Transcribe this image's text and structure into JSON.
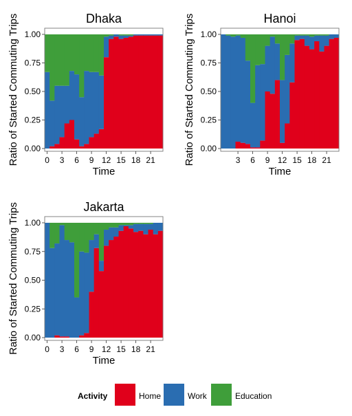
{
  "chart_data": [
    {
      "type": "bar",
      "stacked": true,
      "title": "Dhaka",
      "xlabel": "Time",
      "ylabel": "Ratio of Started Commuting Trips",
      "x": [
        0,
        1,
        2,
        3,
        4,
        5,
        6,
        7,
        8,
        9,
        10,
        11,
        12,
        13,
        14,
        15,
        16,
        17,
        18,
        19,
        20,
        21,
        22,
        23
      ],
      "xticks": [
        "0",
        "3",
        "6",
        "9",
        "12",
        "15",
        "18",
        "21"
      ],
      "yticks": [
        "0.00",
        "0.25",
        "0.50",
        "0.75",
        "1.00"
      ],
      "ylim": [
        0,
        1
      ],
      "series": [
        {
          "name": "Home",
          "values": [
            0.0,
            0.02,
            0.04,
            0.1,
            0.22,
            0.25,
            0.08,
            0.02,
            0.04,
            0.1,
            0.13,
            0.17,
            0.8,
            0.96,
            0.98,
            0.96,
            0.97,
            0.98,
            0.99,
            0.99,
            0.99,
            0.99,
            0.99,
            0.99
          ]
        },
        {
          "name": "Work",
          "values": [
            0.67,
            0.4,
            0.51,
            0.45,
            0.33,
            0.43,
            0.57,
            0.43,
            0.64,
            0.57,
            0.54,
            0.47,
            0.18,
            0.03,
            0.02,
            0.03,
            0.02,
            0.01,
            0.01,
            0.01,
            0.01,
            0.01,
            0.01,
            0.01
          ]
        },
        {
          "name": "Education",
          "values": [
            0.33,
            0.58,
            0.45,
            0.45,
            0.45,
            0.32,
            0.35,
            0.55,
            0.32,
            0.33,
            0.33,
            0.36,
            0.02,
            0.01,
            0.0,
            0.01,
            0.01,
            0.01,
            0.0,
            0.0,
            0.0,
            0.0,
            0.0,
            0.0
          ]
        }
      ]
    },
    {
      "type": "bar",
      "stacked": true,
      "title": "Hanoi",
      "xlabel": "Time",
      "ylabel": "Ratio of Started Commuting Trips",
      "x": [
        0,
        1,
        2,
        3,
        4,
        5,
        6,
        7,
        8,
        9,
        10,
        11,
        12,
        13,
        14,
        15,
        16,
        17,
        18,
        19,
        20,
        21,
        22,
        23
      ],
      "xticks": [
        "3",
        "6",
        "9",
        "12",
        "15",
        "18",
        "21"
      ],
      "yticks": [
        "0.00",
        "0.25",
        "0.50",
        "0.75",
        "1.00"
      ],
      "ylim": [
        0,
        1
      ],
      "series": [
        {
          "name": "Home",
          "values": [
            0.0,
            0.0,
            0.0,
            0.06,
            0.05,
            0.04,
            0.01,
            0.01,
            0.07,
            0.5,
            0.48,
            0.6,
            0.05,
            0.22,
            0.58,
            0.95,
            0.96,
            0.9,
            0.87,
            0.94,
            0.85,
            0.9,
            0.96,
            0.97
          ]
        },
        {
          "name": "Work",
          "values": [
            1.0,
            0.99,
            0.98,
            0.93,
            0.92,
            0.73,
            0.39,
            0.72,
            0.67,
            0.4,
            0.5,
            0.32,
            0.55,
            0.6,
            0.34,
            0.04,
            0.03,
            0.09,
            0.11,
            0.05,
            0.14,
            0.09,
            0.04,
            0.03
          ]
        },
        {
          "name": "Education",
          "values": [
            0.0,
            0.01,
            0.02,
            0.01,
            0.03,
            0.23,
            0.6,
            0.27,
            0.26,
            0.1,
            0.02,
            0.08,
            0.4,
            0.18,
            0.08,
            0.01,
            0.01,
            0.01,
            0.02,
            0.01,
            0.01,
            0.01,
            0.0,
            0.0
          ]
        }
      ]
    },
    {
      "type": "bar",
      "stacked": true,
      "title": "Jakarta",
      "xlabel": "Time",
      "ylabel": "Ratio of Started Commuting Trips",
      "x": [
        0,
        1,
        2,
        3,
        4,
        5,
        6,
        7,
        8,
        9,
        10,
        11,
        12,
        13,
        14,
        15,
        16,
        17,
        18,
        19,
        20,
        21,
        22,
        23
      ],
      "xticks": [
        "0",
        "3",
        "6",
        "9",
        "12",
        "15",
        "18",
        "21"
      ],
      "yticks": [
        "0.00",
        "0.25",
        "0.50",
        "0.75",
        "1.00"
      ],
      "ylim": [
        0,
        1
      ],
      "series": [
        {
          "name": "Home",
          "values": [
            0.0,
            0.0,
            0.02,
            0.01,
            0.01,
            0.0,
            0.0,
            0.02,
            0.04,
            0.4,
            0.78,
            0.58,
            0.8,
            0.85,
            0.88,
            0.93,
            0.97,
            0.95,
            0.92,
            0.93,
            0.9,
            0.94,
            0.9,
            0.93
          ]
        },
        {
          "name": "Work",
          "values": [
            1.0,
            0.78,
            0.8,
            0.97,
            0.84,
            0.83,
            0.35,
            0.73,
            0.7,
            0.45,
            0.12,
            0.09,
            0.14,
            0.11,
            0.08,
            0.05,
            0.01,
            0.03,
            0.07,
            0.06,
            0.09,
            0.05,
            0.1,
            0.07
          ]
        },
        {
          "name": "Education",
          "values": [
            0.0,
            0.22,
            0.18,
            0.02,
            0.15,
            0.17,
            0.65,
            0.25,
            0.26,
            0.15,
            0.1,
            0.33,
            0.06,
            0.04,
            0.04,
            0.02,
            0.02,
            0.02,
            0.01,
            0.01,
            0.01,
            0.01,
            0.0,
            0.0
          ]
        }
      ]
    }
  ],
  "legend": {
    "title": "Activity",
    "items": [
      {
        "label": "Home",
        "color": "#e0001b"
      },
      {
        "label": "Work",
        "color": "#2a6db1"
      },
      {
        "label": "Education",
        "color": "#3f9e3a"
      }
    ]
  },
  "colors": {
    "Home": "#e0001b",
    "Work": "#2a6db1",
    "Education": "#3f9e3a",
    "panel_border": "#7f7f7f",
    "text": "#000000"
  }
}
